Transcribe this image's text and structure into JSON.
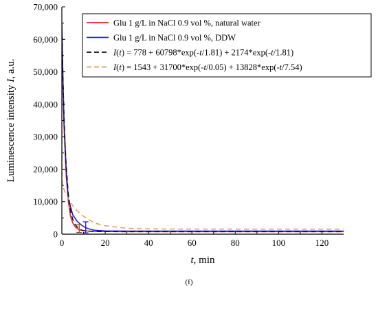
{
  "chart_data": {
    "type": "line",
    "xlabel": "t, min",
    "ylabel": "Luminescence intensity I, a.u.",
    "xlim": [
      0,
      130
    ],
    "ylim": [
      0,
      70000
    ],
    "x_ticks": [
      0,
      20,
      40,
      60,
      80,
      100,
      120
    ],
    "y_ticks": [
      0,
      10000,
      20000,
      30000,
      40000,
      50000,
      60000,
      70000
    ],
    "x_tick_labels": [
      "0",
      "20",
      "40",
      "60",
      "80",
      "100",
      "120"
    ],
    "y_tick_labels": [
      "0",
      "10,000",
      "20,000",
      "30,000",
      "40,000",
      "50,000",
      "60,000",
      "70,000"
    ],
    "grid": false,
    "legend_position": "top-right",
    "series": [
      {
        "name": "Glu 1 g/L in NaCl 0.9 vol %, natural water",
        "color": "#e8202a",
        "style": "solid",
        "x": [
          0,
          0.5,
          1,
          2,
          3,
          4,
          5,
          6,
          7,
          8,
          10,
          12,
          15,
          20,
          30,
          40,
          60,
          80,
          100,
          130
        ],
        "y": [
          63000,
          46000,
          33000,
          18000,
          10000,
          5500,
          3500,
          2400,
          1800,
          1400,
          1100,
          950,
          850,
          800,
          780,
          780,
          780,
          780,
          780,
          780
        ]
      },
      {
        "name": "Glu 1 g/L in NaCl 0.9 vol %, DDW",
        "color": "#1f1fd6",
        "style": "solid",
        "x": [
          0,
          0.5,
          1,
          2,
          3,
          5,
          7,
          9,
          11,
          13,
          15,
          20,
          30,
          40,
          60,
          80,
          100,
          130
        ],
        "y": [
          65000,
          48000,
          35000,
          20000,
          11000,
          6000,
          4000,
          2800,
          2000,
          1500,
          1200,
          1000,
          950,
          950,
          950,
          950,
          950,
          950
        ]
      },
      {
        "name": "I(t) = 778 + 60798*exp(-t/1.81) + 2174*exp(-t/1.81)",
        "color": "#111111",
        "style": "dashed",
        "x": [
          0,
          0.5,
          1,
          1.5,
          2,
          3,
          4,
          5,
          6,
          8,
          10,
          15,
          20,
          40,
          80,
          130
        ],
        "y": [
          63750,
          48000,
          36400,
          27500,
          21100,
          12300,
          7300,
          4600,
          3100,
          1500,
          1060,
          790,
          780,
          778,
          778,
          778
        ]
      },
      {
        "name": "I(t) = 1543 + 31700*exp(-t/0.05) + 13828*exp(-t/7.54)",
        "color": "#e89a4a",
        "style": "dashed",
        "x": [
          0,
          0.05,
          0.1,
          0.2,
          0.5,
          1,
          2,
          4,
          6,
          8,
          10,
          15,
          20,
          30,
          40,
          60,
          80,
          100,
          130
        ],
        "y": [
          47071,
          26900,
          19700,
          15340,
          14890,
          13640,
          12220,
          9760,
          7940,
          6580,
          5500,
          3440,
          2580,
          1800,
          1620,
          1550,
          1545,
          1543,
          1543
        ]
      }
    ],
    "error_bars": [
      {
        "series": "Glu 1 g/L in NaCl 0.9 vol %, natural water",
        "x": 8,
        "y": 1700,
        "err": 1200,
        "color": "#8b4a2a"
      },
      {
        "series": "Glu 1 g/L in NaCl 0.9 vol %, DDW",
        "x": 11,
        "y": 2100,
        "err": 1700,
        "color": "#1f1fd6"
      }
    ]
  },
  "legend": {
    "items": [
      {
        "label": "Glu 1 g/L in NaCl 0.9 vol %, natural water",
        "color": "#e8202a",
        "style": "solid"
      },
      {
        "label": "Glu 1 g/L in NaCl 0.9 vol %, DDW",
        "color": "#1f1fd6",
        "style": "solid"
      },
      {
        "label": "I(t) = 778 + 60798*exp(-t/1.81) + 2174*exp(-t/1.81)",
        "color": "#111111",
        "style": "dashed"
      },
      {
        "label": "I(t) = 1543 + 31700*exp(-t/0.05) + 13828*exp(-t/7.54)",
        "color": "#e89a4a",
        "style": "dashed"
      }
    ]
  },
  "caption": "(f)"
}
